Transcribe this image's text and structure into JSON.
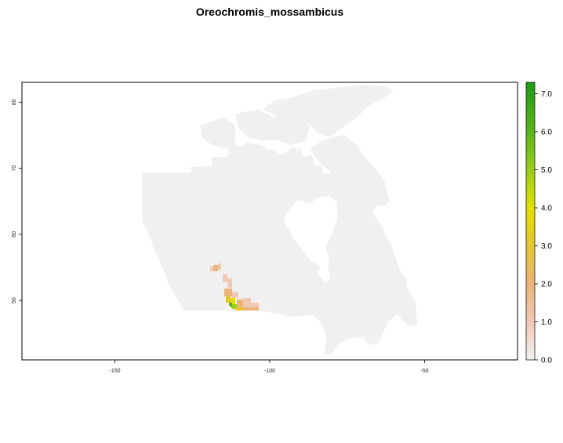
{
  "title": "Oreochromis_mossambicus",
  "map": {
    "x_ticks": [
      -150,
      -100,
      -50
    ],
    "y_ticks": [
      50,
      60,
      70,
      80
    ],
    "x_range": [
      -180,
      -20
    ],
    "y_range": [
      41,
      83
    ],
    "land_color": "#f0f0f0",
    "background_color": "#ffffff"
  },
  "legend": {
    "min": 0,
    "max": 7.3,
    "tick_values": [
      0.0,
      1.0,
      2.0,
      3.0,
      4.0,
      5.0,
      6.0,
      7.0
    ],
    "tick_labels": [
      "0.0",
      "1.0",
      "2.0",
      "3.0",
      "4.0",
      "5.0",
      "6.0",
      "7.0"
    ],
    "color_stops": [
      {
        "value": 0.0,
        "color": "#f2f2f2"
      },
      {
        "value": 1.0,
        "color": "#f0c9b4"
      },
      {
        "value": 2.0,
        "color": "#ebb37a"
      },
      {
        "value": 3.0,
        "color": "#e6c533"
      },
      {
        "value": 4.0,
        "color": "#e0e000"
      },
      {
        "value": 5.0,
        "color": "#9acd1a"
      },
      {
        "value": 6.0,
        "color": "#5ab51d"
      },
      {
        "value": 7.3,
        "color": "#1f9a16"
      }
    ]
  }
}
